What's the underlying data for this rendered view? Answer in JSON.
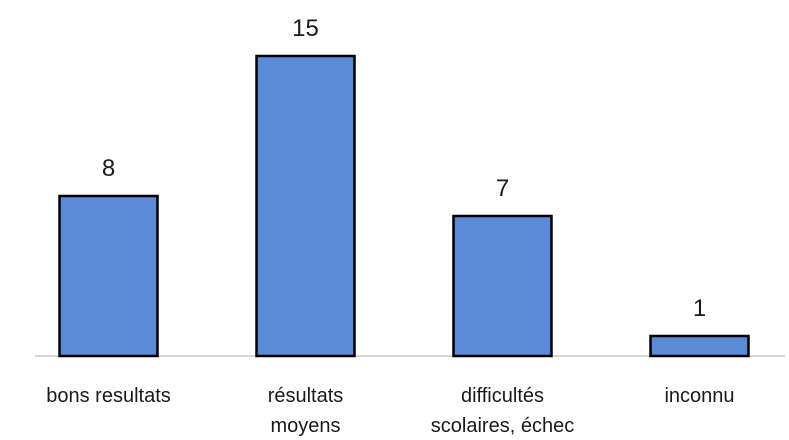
{
  "chart_data": {
    "type": "bar",
    "categories": [
      [
        "bons resultats"
      ],
      [
        "résultats",
        "moyens"
      ],
      [
        "difficultés",
        "scolaires, échec"
      ],
      [
        "inconnu"
      ]
    ],
    "values": [
      8,
      15,
      7,
      1
    ],
    "data_labels": [
      "8",
      "15",
      "7",
      "1"
    ],
    "title": "",
    "xlabel": "",
    "ylabel": "",
    "ylim": [
      0,
      15
    ],
    "grid": false,
    "legend": "none",
    "colors": {
      "bar_fill": "#5b8ad6",
      "bar_stroke": "#000000",
      "baseline": "#c8c8c8"
    }
  }
}
